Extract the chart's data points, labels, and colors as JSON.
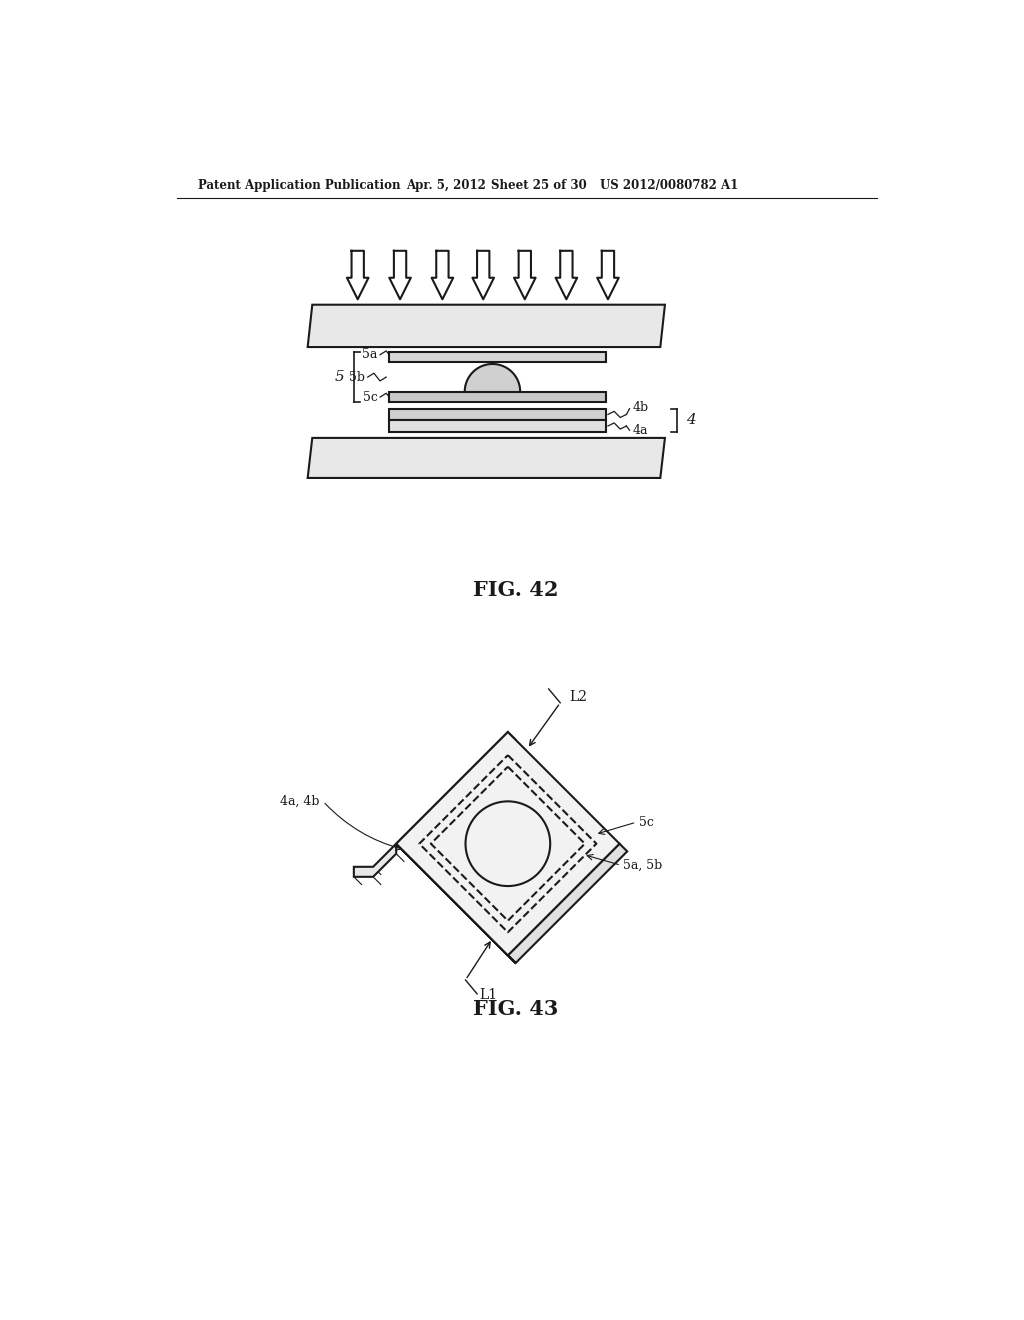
{
  "background_color": "#ffffff",
  "header_text": "Patent Application Publication",
  "header_date": "Apr. 5, 2012",
  "header_sheet": "Sheet 25 of 30",
  "header_patent": "US 2012/0080782 A1",
  "fig42_title": "FIG. 42",
  "fig43_title": "FIG. 43",
  "line_color": "#1a1a1a",
  "line_width": 1.5,
  "thin_line": 0.8
}
